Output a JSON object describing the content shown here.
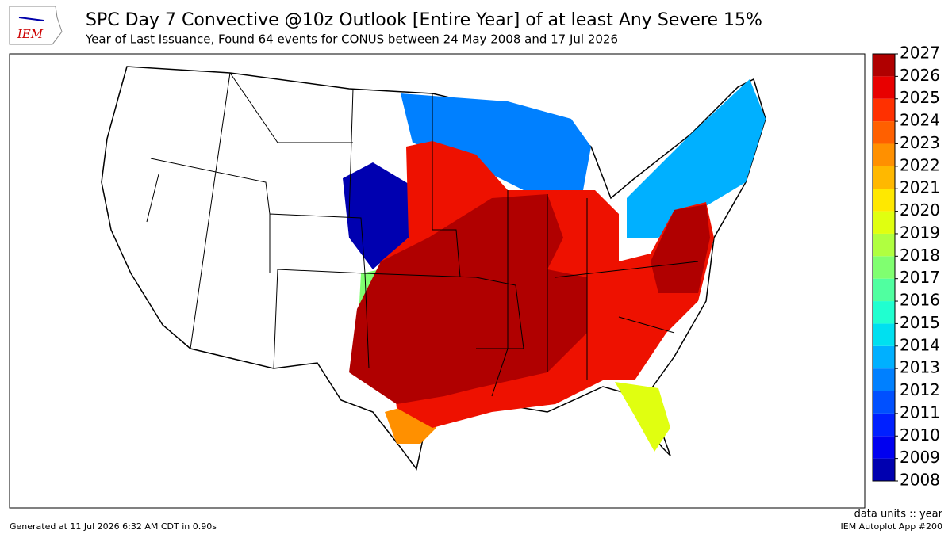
{
  "header": {
    "logo": "IEM",
    "title": "SPC Day 7 Convective @10z Outlook [Entire Year] of at least Any Severe 15%",
    "subtitle": "Year of Last Issuance, Found 64 events for CONUS between 24 May 2008 and 17 Jul 2026"
  },
  "colorbar": {
    "ticks": [
      2008,
      2009,
      2010,
      2011,
      2012,
      2013,
      2014,
      2015,
      2016,
      2017,
      2018,
      2019,
      2020,
      2021,
      2022,
      2023,
      2024,
      2025,
      2026,
      2027
    ],
    "colors": [
      "#0000b0",
      "#0000f0",
      "#0020ff",
      "#0050ff",
      "#0080ff",
      "#00b0ff",
      "#00e0f0",
      "#20ffd0",
      "#50ffa0",
      "#80ff70",
      "#b0ff40",
      "#e0ff10",
      "#ffe800",
      "#ffb800",
      "#ff9000",
      "#ff6000",
      "#ff3000",
      "#e80000",
      "#b00000"
    ]
  },
  "footer": {
    "units": "data units :: year",
    "generated": "Generated at 11 Jul 2026 6:32 AM CDT in 0.90s",
    "app": "IEM Autoplot App #200"
  }
}
